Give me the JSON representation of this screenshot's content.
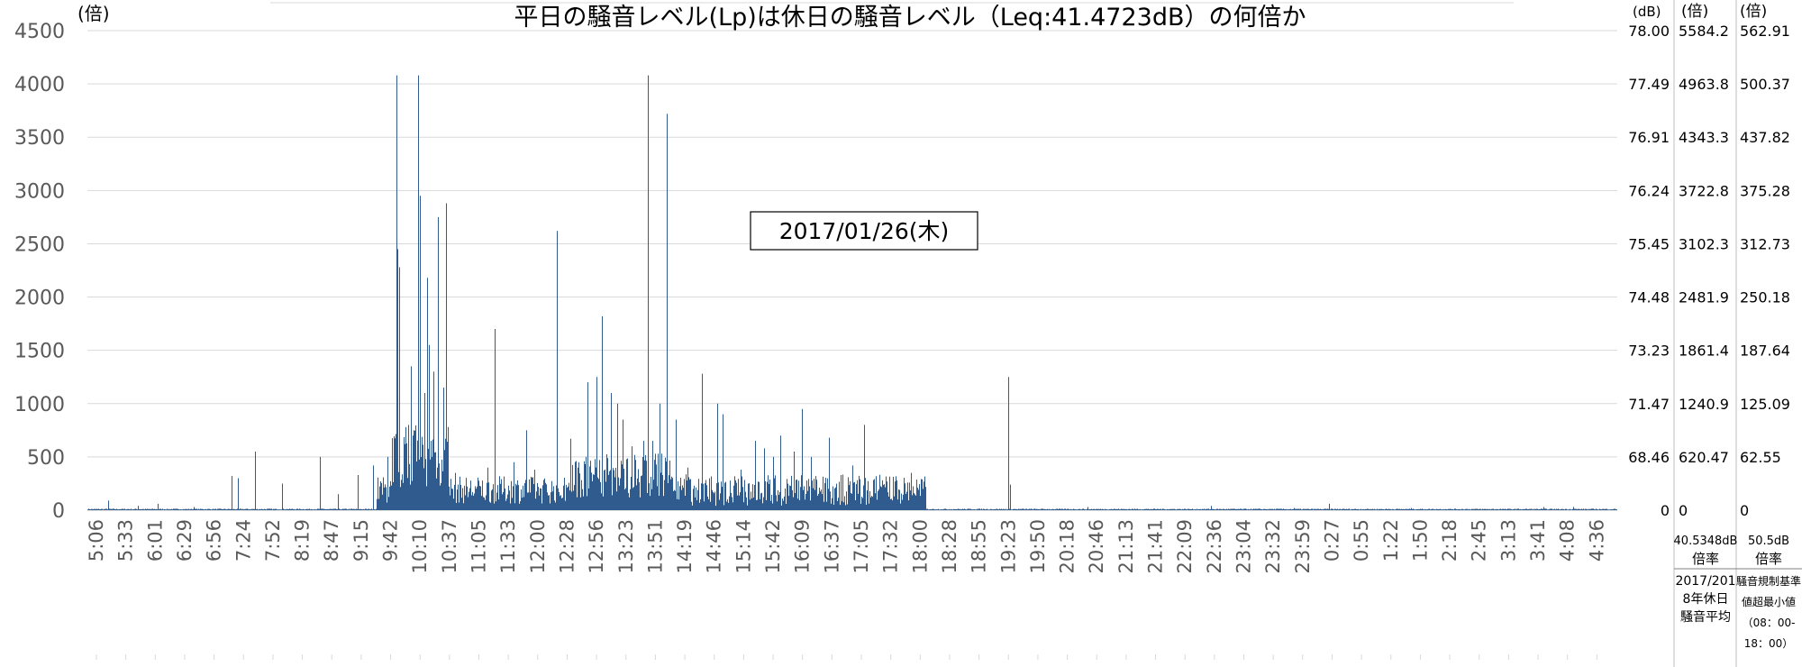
{
  "chart_data": {
    "type": "bar",
    "title": "平日の騒音レベル(Lp)は休日の騒音レベル（Leq:41.4723dB）の何倍か",
    "annotation": "2017/01/26(木)",
    "ylabel": "(倍)",
    "ylim": [
      0,
      4500
    ],
    "y_ticks": [
      "0",
      "500",
      "1000",
      "1500",
      "2000",
      "2500",
      "3000",
      "3500",
      "4000",
      "4500"
    ],
    "x_tick_labels": [
      "5:06",
      "5:33",
      "6:01",
      "6:29",
      "6:56",
      "7:24",
      "7:52",
      "8:19",
      "8:47",
      "9:15",
      "9:42",
      "10:10",
      "10:37",
      "11:05",
      "11:33",
      "12:00",
      "12:28",
      "12:56",
      "13:23",
      "13:51",
      "14:19",
      "14:46",
      "15:14",
      "15:42",
      "16:09",
      "16:37",
      "17:05",
      "17:32",
      "18:00",
      "18:28",
      "18:55",
      "19:23",
      "19:50",
      "20:18",
      "20:46",
      "21:13",
      "21:41",
      "22:09",
      "22:36",
      "23:04",
      "23:32",
      "23:59",
      "0:27",
      "0:55",
      "1:22",
      "1:50",
      "2:18",
      "2:45",
      "3:13",
      "3:41",
      "4:08",
      "4:36"
    ],
    "right_axes": [
      {
        "unit": "(dB)",
        "ticks": [
          "0",
          "68.46",
          "71.47",
          "73.23",
          "74.48",
          "75.45",
          "76.24",
          "76.91",
          "77.49",
          "78.00"
        ]
      },
      {
        "unit": "(倍)",
        "ticks": [
          "0",
          "620.47",
          "1240.9",
          "1861.4",
          "2481.9",
          "3102.3",
          "3722.8",
          "4343.3",
          "4963.8",
          "5584.2"
        ]
      },
      {
        "unit": "(倍)",
        "ticks": [
          "0",
          "62.55",
          "125.09",
          "187.64",
          "250.18",
          "312.73",
          "375.28",
          "437.82",
          "500.37",
          "562.91"
        ]
      }
    ],
    "footer": {
      "col1_value": "40.5348dB",
      "col1_label": "倍率",
      "col1_desc": [
        "2017/201",
        "8年休日",
        "騒音平均"
      ],
      "col2_value": "50.5dB",
      "col2_label": "倍率",
      "col2_desc": [
        "騒音規制基準",
        "値超最小値",
        "（08：00-",
        "18：00）"
      ]
    },
    "series": [
      {
        "color": "#2f5b8f",
        "peaks": [
          [
            0.7,
            90
          ],
          [
            1.7,
            40
          ],
          [
            2.4,
            60
          ],
          [
            3.6,
            30
          ],
          [
            4.9,
            320
          ],
          [
            5.1,
            300
          ],
          [
            5.7,
            550
          ],
          [
            6.6,
            250
          ],
          [
            7.9,
            500
          ],
          [
            8.5,
            150
          ],
          [
            9.2,
            330
          ],
          [
            9.7,
            420
          ],
          [
            10.2,
            500
          ],
          [
            10.5,
            4080
          ],
          [
            10.55,
            2450
          ],
          [
            10.6,
            2280
          ],
          [
            10.9,
            800
          ],
          [
            11.0,
            1350
          ],
          [
            11.1,
            750
          ],
          [
            11.25,
            4080
          ],
          [
            11.3,
            2950
          ],
          [
            11.45,
            1100
          ],
          [
            11.55,
            2180
          ],
          [
            11.6,
            1550
          ],
          [
            11.75,
            1300
          ],
          [
            11.9,
            2750
          ],
          [
            12.1,
            1150
          ],
          [
            12.2,
            2880
          ],
          [
            12.5,
            350
          ],
          [
            13.3,
            220
          ],
          [
            13.6,
            400
          ],
          [
            13.85,
            1700
          ],
          [
            14.3,
            230
          ],
          [
            14.5,
            450
          ],
          [
            14.9,
            750
          ],
          [
            15.2,
            380
          ],
          [
            15.55,
            250
          ],
          [
            15.95,
            2620
          ],
          [
            16.4,
            670
          ],
          [
            16.7,
            450
          ],
          [
            17.0,
            1200
          ],
          [
            17.3,
            1250
          ],
          [
            17.5,
            1820
          ],
          [
            17.8,
            1100
          ],
          [
            18.0,
            1000
          ],
          [
            18.2,
            850
          ],
          [
            18.5,
            600
          ],
          [
            18.9,
            650
          ],
          [
            19.05,
            4080
          ],
          [
            19.2,
            650
          ],
          [
            19.45,
            1000
          ],
          [
            19.7,
            3720
          ],
          [
            20.0,
            850
          ],
          [
            20.4,
            400
          ],
          [
            20.9,
            1280
          ],
          [
            21.4,
            1000
          ],
          [
            21.6,
            900
          ],
          [
            22.2,
            380
          ],
          [
            22.7,
            650
          ],
          [
            23.0,
            580
          ],
          [
            23.3,
            500
          ],
          [
            23.55,
            700
          ],
          [
            24.0,
            550
          ],
          [
            24.3,
            950
          ],
          [
            24.6,
            500
          ],
          [
            25.2,
            680
          ],
          [
            25.6,
            330
          ],
          [
            26.0,
            420
          ],
          [
            26.4,
            800
          ],
          [
            26.8,
            200
          ],
          [
            27.5,
            70
          ],
          [
            28.0,
            350
          ],
          [
            28.4,
            200
          ],
          [
            31.3,
            1250
          ],
          [
            31.35,
            240
          ],
          [
            34.0,
            30
          ],
          [
            38.2,
            40
          ],
          [
            41.0,
            20
          ],
          [
            42.2,
            60
          ],
          [
            45.0,
            20
          ],
          [
            49.5,
            30
          ],
          [
            50.5,
            30
          ]
        ]
      }
    ],
    "reference_line_color": "#e0401a"
  }
}
